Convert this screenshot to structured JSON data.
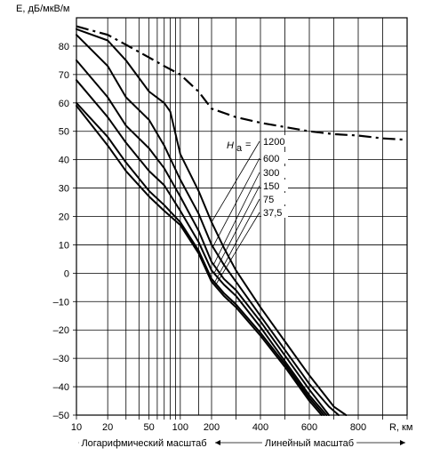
{
  "chart_data": {
    "type": "line",
    "ylabel": "E, дБ/мкВ/м",
    "xlabel": "R, км",
    "x_scale_note_log": "Логарифмический масштаб",
    "x_scale_note_lin": "Линейный масштаб",
    "ylim": [
      -50,
      90
    ],
    "y_ticks": [
      80,
      70,
      60,
      50,
      40,
      30,
      20,
      10,
      0,
      -10,
      -20,
      -30,
      -40,
      -50
    ],
    "y_tick_labels": [
      "80",
      "70",
      "60",
      "50",
      "40",
      "30",
      "20",
      "10",
      "0",
      "–10",
      "–20",
      "–30",
      "–40",
      "–50"
    ],
    "x_ticks": [
      10,
      20,
      50,
      100,
      200,
      400,
      600,
      800
    ],
    "x_tick_labels": [
      "10",
      "20",
      "50",
      "100",
      "200",
      "400",
      "600",
      "800"
    ],
    "x_scale": "logarithmic from 10 to 200 km, linear from 200 to 1000 km",
    "grid": true,
    "legend_title": "H",
    "legend_title_sub": "a",
    "legend_eq": "=",
    "series": [
      {
        "name": "1200",
        "x": [
          10,
          20,
          30,
          50,
          70,
          80,
          100,
          150,
          200,
          250,
          300,
          400,
          500,
          600,
          700,
          750
        ],
        "y": [
          86,
          82,
          75,
          64,
          60,
          57,
          42,
          29,
          18,
          9,
          1,
          -12,
          -24,
          -36,
          -47,
          -51
        ]
      },
      {
        "name": "600",
        "x": [
          10,
          20,
          30,
          50,
          70,
          100,
          150,
          200,
          250,
          300,
          400,
          500,
          600,
          680,
          720
        ],
        "y": [
          84,
          73,
          62,
          54,
          45,
          33,
          21,
          10,
          3,
          -3,
          -15,
          -27,
          -39,
          -47,
          -51
        ]
      },
      {
        "name": "300",
        "x": [
          10,
          20,
          30,
          50,
          70,
          100,
          150,
          200,
          250,
          300,
          400,
          500,
          600,
          680
        ],
        "y": [
          75,
          62,
          52,
          44,
          37,
          27,
          15,
          4,
          -2,
          -6,
          -17,
          -29,
          -41,
          -51
        ]
      },
      {
        "name": "150",
        "x": [
          10,
          20,
          30,
          50,
          70,
          100,
          150,
          200,
          250,
          300,
          400,
          500,
          600,
          670
        ],
        "y": [
          68,
          55,
          46,
          36,
          31,
          22,
          11,
          1,
          -4,
          -8,
          -19,
          -31,
          -43,
          -51
        ]
      },
      {
        "name": "75",
        "x": [
          10,
          20,
          30,
          50,
          70,
          100,
          150,
          200,
          250,
          300,
          400,
          500,
          600,
          660
        ],
        "y": [
          60,
          48,
          39,
          29,
          24,
          18,
          8,
          -2,
          -7,
          -11,
          -21,
          -32,
          -44,
          -51
        ]
      },
      {
        "name": "37,5",
        "x": [
          10,
          20,
          30,
          50,
          70,
          100,
          150,
          200,
          250,
          300,
          400,
          500,
          600,
          650
        ],
        "y": [
          59,
          45,
          36,
          27,
          22,
          17,
          7,
          -3,
          -8,
          -12,
          -22,
          -33,
          -45,
          -51
        ]
      }
    ],
    "free_space_line": {
      "style": "dash-dot",
      "x": [
        10,
        20,
        30,
        50,
        70,
        100,
        150,
        200,
        300,
        400,
        500,
        600,
        700,
        800,
        900,
        1000
      ],
      "y": [
        87,
        84,
        80.5,
        76,
        73,
        70,
        64,
        58,
        55,
        53,
        51.5,
        50,
        49,
        48.5,
        47.5,
        47
      ]
    }
  }
}
